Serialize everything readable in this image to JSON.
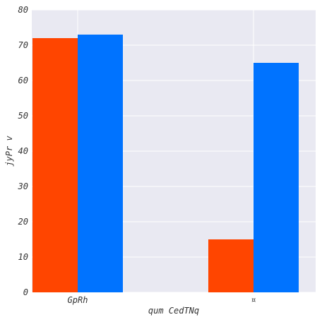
{
  "chart_data": {
    "type": "bar",
    "categories": [
      "GpRh",
      "¤"
    ],
    "series": [
      {
        "values": [
          72,
          15
        ],
        "color": "#ff4500"
      },
      {
        "values": [
          73,
          65
        ],
        "color": "#0073ff"
      }
    ],
    "xlabel": "qum CedTNq",
    "ylabel": "jyPr  v",
    "ylim": [
      0,
      80
    ],
    "yticks": [
      0,
      10,
      20,
      30,
      40,
      50,
      60,
      70,
      80
    ],
    "grid": true,
    "background": "#e9e9f2",
    "legend": "none"
  }
}
